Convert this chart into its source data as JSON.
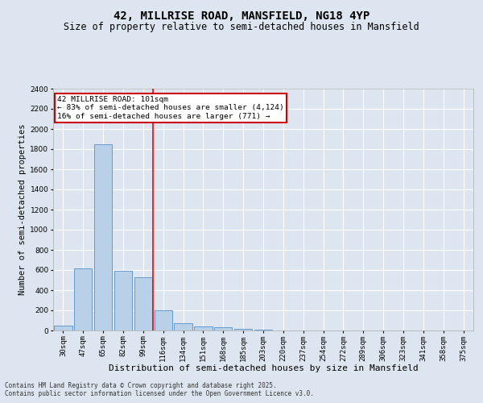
{
  "title1": "42, MILLRISE ROAD, MANSFIELD, NG18 4YP",
  "title2": "Size of property relative to semi-detached houses in Mansfield",
  "xlabel": "Distribution of semi-detached houses by size in Mansfield",
  "ylabel": "Number of semi-detached properties",
  "categories": [
    "30sqm",
    "47sqm",
    "65sqm",
    "82sqm",
    "99sqm",
    "116sqm",
    "134sqm",
    "151sqm",
    "168sqm",
    "185sqm",
    "203sqm",
    "220sqm",
    "237sqm",
    "254sqm",
    "272sqm",
    "289sqm",
    "306sqm",
    "323sqm",
    "341sqm",
    "358sqm",
    "375sqm"
  ],
  "values": [
    50,
    620,
    1850,
    590,
    530,
    200,
    70,
    40,
    30,
    20,
    5,
    0,
    0,
    0,
    0,
    0,
    0,
    0,
    0,
    0,
    0
  ],
  "bar_color": "#b8d0e8",
  "bar_edge_color": "#6699cc",
  "background_color": "#dde6f0",
  "grid_color": "#ffffff",
  "red_line_x": 4.5,
  "annotation_title": "42 MILLRISE ROAD: 101sqm",
  "annotation_line1": "← 83% of semi-detached houses are smaller (4,124)",
  "annotation_line2": "16% of semi-detached houses are larger (771) →",
  "annotation_box_color": "#ffffff",
  "annotation_box_edge": "#cc0000",
  "ylim": [
    0,
    2400
  ],
  "yticks": [
    0,
    200,
    400,
    600,
    800,
    1000,
    1200,
    1400,
    1600,
    1800,
    2000,
    2200,
    2400
  ],
  "footnote1": "Contains HM Land Registry data © Crown copyright and database right 2025.",
  "footnote2": "Contains public sector information licensed under the Open Government Licence v3.0.",
  "title1_fontsize": 10,
  "title2_fontsize": 8.5,
  "xlabel_fontsize": 8,
  "ylabel_fontsize": 7.5,
  "annot_fontsize": 6.8,
  "tick_fontsize": 6.5,
  "footnote_fontsize": 5.5
}
